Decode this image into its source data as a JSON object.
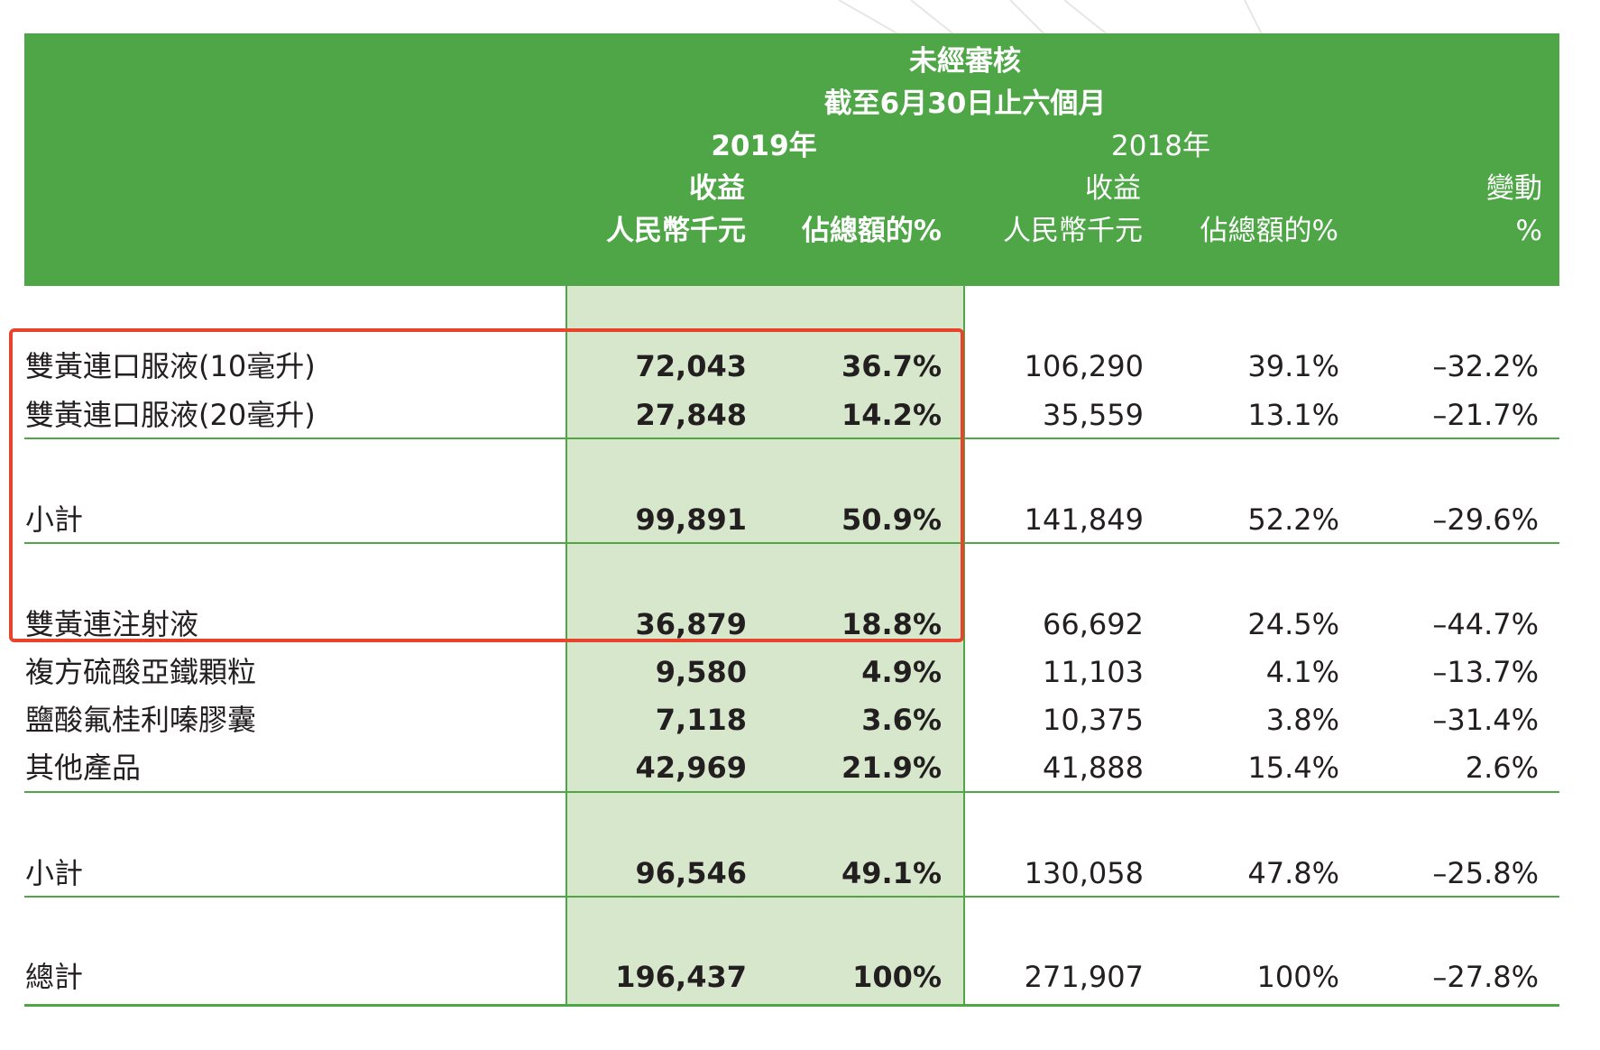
{
  "header": {
    "line1": "未經審核",
    "line2": "截至6月30日止六個月",
    "year_2019": "2019年",
    "year_2018": "2018年",
    "revenue_2019": "收益",
    "revenue_2018": "收益",
    "change": "變動",
    "rmb_2019": "人民幣千元",
    "pct_2019": "佔總額的%",
    "rmb_2018": "人民幣千元",
    "pct_2018": "佔總額的%",
    "change_unit": "%"
  },
  "rows": [
    {
      "label": "雙黃連口服液(10毫升)",
      "rev2019": "72,043",
      "pct2019": "36.7%",
      "rev2018": "106,290",
      "pct2018": "39.1%",
      "change": "–32.2%"
    },
    {
      "label": "雙黃連口服液(20毫升)",
      "rev2019": "27,848",
      "pct2019": "14.2%",
      "rev2018": "35,559",
      "pct2018": "13.1%",
      "change": "–21.7%"
    },
    {
      "label": "小計",
      "rev2019": "99,891",
      "pct2019": "50.9%",
      "rev2018": "141,849",
      "pct2018": "52.2%",
      "change": "–29.6%"
    },
    {
      "label": "雙黃連注射液",
      "rev2019": "36,879",
      "pct2019": "18.8%",
      "rev2018": "66,692",
      "pct2018": "24.5%",
      "change": "–44.7%"
    },
    {
      "label": "複方硫酸亞鐵顆粒",
      "rev2019": "9,580",
      "pct2019": "4.9%",
      "rev2018": "11,103",
      "pct2018": "4.1%",
      "change": "–13.7%"
    },
    {
      "label": "鹽酸氟桂利嗪膠囊",
      "rev2019": "7,118",
      "pct2019": "3.6%",
      "rev2018": "10,375",
      "pct2018": "3.8%",
      "change": "–31.4%"
    },
    {
      "label": "其他產品",
      "rev2019": "42,969",
      "pct2019": "21.9%",
      "rev2018": "41,888",
      "pct2018": "15.4%",
      "change": "2.6%"
    },
    {
      "label": "小計",
      "rev2019": "96,546",
      "pct2019": "49.1%",
      "rev2018": "130,058",
      "pct2018": "47.8%",
      "change": "–25.8%"
    },
    {
      "label": "總計",
      "rev2019": "196,437",
      "pct2019": "100%",
      "rev2018": "271,907",
      "pct2018": "100%",
      "change": "–27.8%"
    }
  ],
  "colors": {
    "header_green": "#4ea647",
    "shade_green": "#d6e7cb",
    "highlight_red": "#e8432c"
  }
}
